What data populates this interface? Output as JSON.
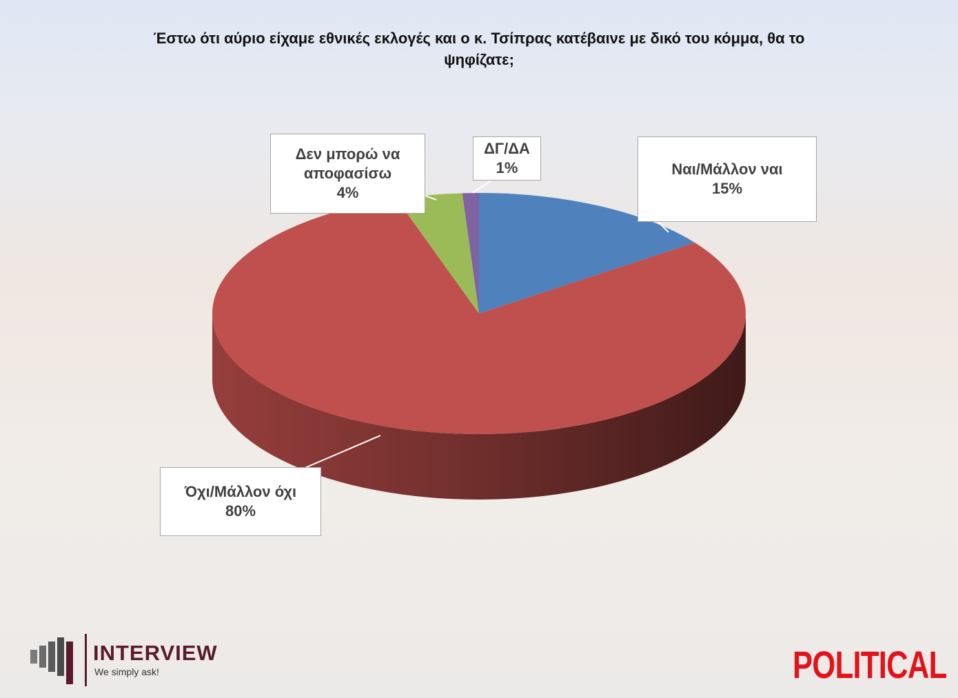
{
  "chart_data": {
    "type": "pie",
    "title": "Έστω ότι αύριο είχαμε εθνικές εκλογές και ο κ. Τσίπρας κατέβαινε με δικό του κόμμα, θα το ψηφίζατε;",
    "categories": [
      "Ναι/Μάλλον ναι",
      "Όχι/Μάλλον όχι",
      "Δεν μπορώ να αποφασίσω",
      "ΔΓ/ΔΑ"
    ],
    "values": [
      15,
      80,
      4,
      1
    ],
    "value_labels": [
      "15%",
      "80%",
      "4%",
      "1%"
    ],
    "colors": [
      "#4f81bd",
      "#c0504d",
      "#9bbb59",
      "#8064a2"
    ]
  },
  "logos": {
    "interview": "INTERVIEW",
    "interview_tagline": "We simply ask!",
    "political": "POLITICAL"
  }
}
